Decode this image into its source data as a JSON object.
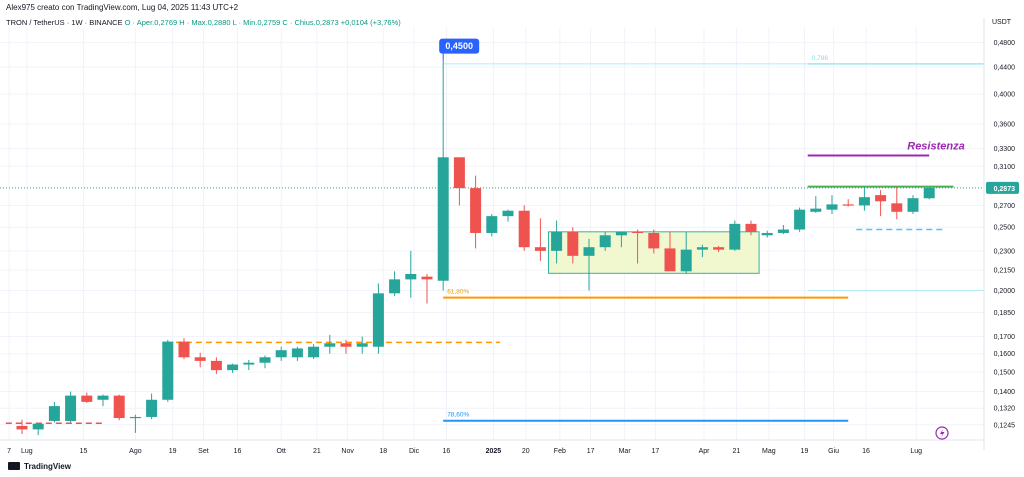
{
  "header": {
    "attribution": "Alex975 creato con TradingView.com, Lug 04, 2025 11:43 UTC+2",
    "symbol_line": "TRON / TetherUS · 1W · BINANCE",
    "ohlc": "O · Aper.0,2769  H · Max.0,2880  L · Min.0,2759  C · Chius.0,2873  +0,0104 (+3,76%)"
  },
  "footer": {
    "logo_text": "TradingView"
  },
  "colors": {
    "up": "#26a69a",
    "down": "#ef5350",
    "resistance": "#9c27b0",
    "green_line": "#4caf50",
    "orange": "#ff9800",
    "fib_blue": "#2196f3",
    "box_fill": "#f1f8d0",
    "box_border": "#2fb3a6",
    "price_tag": "#26a69a",
    "high_tag": "#2962ff"
  },
  "chart_data": {
    "type": "candlestick",
    "currency": "USDT",
    "scale": "log",
    "ylim": [
      0.118,
      0.505
    ],
    "y_ticks": [
      "0,4800",
      "0,4400",
      "0,4000",
      "0,3600",
      "0,3300",
      "0,3100",
      "0,2873",
      "0,2700",
      "0,2500",
      "0,2300",
      "0,2150",
      "0,2000",
      "0,1850",
      "0,1700",
      "0,1600",
      "0,1500",
      "0,1400",
      "0,1320",
      "0,1245"
    ],
    "y_tick_values": [
      0.48,
      0.44,
      0.4,
      0.36,
      0.33,
      0.31,
      0.2873,
      0.27,
      0.25,
      0.23,
      0.215,
      0.2,
      0.185,
      0.17,
      0.16,
      0.15,
      0.14,
      0.132,
      0.1245
    ],
    "x_labels": [
      "7",
      "Lug",
      "15",
      "Ago",
      "19",
      "Set",
      "16",
      "Ott",
      "21",
      "Nov",
      "18",
      "Dic",
      "16",
      "2025",
      "20",
      "Feb",
      "17",
      "Mar",
      "17",
      "Apr",
      "21",
      "Mag",
      "19",
      "Giu",
      "16",
      "Lug"
    ],
    "x_label_idx": [
      -0.8,
      0.3,
      3.8,
      7,
      9.3,
      11.2,
      13.3,
      16,
      18.2,
      20.1,
      22.3,
      24.2,
      26.2,
      29.1,
      31.1,
      33.2,
      35.1,
      37.2,
      39.1,
      42.1,
      44.1,
      46.1,
      48.3,
      50.1,
      52.1,
      55.2
    ],
    "candles": [
      {
        "o": 0.124,
        "h": 0.1268,
        "l": 0.1205,
        "c": 0.1225
      },
      {
        "o": 0.1225,
        "h": 0.1252,
        "l": 0.12,
        "c": 0.125
      },
      {
        "o": 0.1262,
        "h": 0.135,
        "l": 0.1255,
        "c": 0.133
      },
      {
        "o": 0.1262,
        "h": 0.14,
        "l": 0.1255,
        "c": 0.138
      },
      {
        "o": 0.138,
        "h": 0.1395,
        "l": 0.1345,
        "c": 0.135
      },
      {
        "o": 0.136,
        "h": 0.1385,
        "l": 0.133,
        "c": 0.138
      },
      {
        "o": 0.138,
        "h": 0.1385,
        "l": 0.1265,
        "c": 0.1275
      },
      {
        "o": 0.1275,
        "h": 0.129,
        "l": 0.121,
        "c": 0.128
      },
      {
        "o": 0.128,
        "h": 0.139,
        "l": 0.127,
        "c": 0.136
      },
      {
        "o": 0.136,
        "h": 0.168,
        "l": 0.135,
        "c": 0.167
      },
      {
        "o": 0.167,
        "h": 0.169,
        "l": 0.157,
        "c": 0.158
      },
      {
        "o": 0.158,
        "h": 0.1605,
        "l": 0.1525,
        "c": 0.156
      },
      {
        "o": 0.156,
        "h": 0.158,
        "l": 0.149,
        "c": 0.151
      },
      {
        "o": 0.151,
        "h": 0.1545,
        "l": 0.1495,
        "c": 0.154
      },
      {
        "o": 0.154,
        "h": 0.1565,
        "l": 0.151,
        "c": 0.155
      },
      {
        "o": 0.155,
        "h": 0.159,
        "l": 0.152,
        "c": 0.158
      },
      {
        "o": 0.158,
        "h": 0.164,
        "l": 0.156,
        "c": 0.162
      },
      {
        "o": 0.158,
        "h": 0.164,
        "l": 0.156,
        "c": 0.163
      },
      {
        "o": 0.158,
        "h": 0.1655,
        "l": 0.157,
        "c": 0.164
      },
      {
        "o": 0.164,
        "h": 0.171,
        "l": 0.16,
        "c": 0.166
      },
      {
        "o": 0.166,
        "h": 0.168,
        "l": 0.16,
        "c": 0.164
      },
      {
        "o": 0.164,
        "h": 0.17,
        "l": 0.16,
        "c": 0.166
      },
      {
        "o": 0.164,
        "h": 0.205,
        "l": 0.16,
        "c": 0.198
      },
      {
        "o": 0.198,
        "h": 0.214,
        "l": 0.196,
        "c": 0.208
      },
      {
        "o": 0.208,
        "h": 0.23,
        "l": 0.195,
        "c": 0.212
      },
      {
        "o": 0.21,
        "h": 0.212,
        "l": 0.191,
        "c": 0.208
      },
      {
        "o": 0.207,
        "h": 0.45,
        "l": 0.2,
        "c": 0.32
      },
      {
        "o": 0.32,
        "h": 0.32,
        "l": 0.27,
        "c": 0.287
      },
      {
        "o": 0.287,
        "h": 0.3,
        "l": 0.232,
        "c": 0.245
      },
      {
        "o": 0.245,
        "h": 0.262,
        "l": 0.242,
        "c": 0.26
      },
      {
        "o": 0.26,
        "h": 0.266,
        "l": 0.255,
        "c": 0.265
      },
      {
        "o": 0.265,
        "h": 0.27,
        "l": 0.23,
        "c": 0.233
      },
      {
        "o": 0.233,
        "h": 0.258,
        "l": 0.222,
        "c": 0.23
      },
      {
        "o": 0.23,
        "h": 0.256,
        "l": 0.22,
        "c": 0.246
      },
      {
        "o": 0.246,
        "h": 0.25,
        "l": 0.22,
        "c": 0.226
      },
      {
        "o": 0.226,
        "h": 0.24,
        "l": 0.2,
        "c": 0.233
      },
      {
        "o": 0.233,
        "h": 0.246,
        "l": 0.23,
        "c": 0.243
      },
      {
        "o": 0.243,
        "h": 0.246,
        "l": 0.233,
        "c": 0.246
      },
      {
        "o": 0.246,
        "h": 0.248,
        "l": 0.22,
        "c": 0.245
      },
      {
        "o": 0.245,
        "h": 0.248,
        "l": 0.228,
        "c": 0.232
      },
      {
        "o": 0.232,
        "h": 0.246,
        "l": 0.215,
        "c": 0.214
      },
      {
        "o": 0.214,
        "h": 0.246,
        "l": 0.212,
        "c": 0.231
      },
      {
        "o": 0.231,
        "h": 0.235,
        "l": 0.225,
        "c": 0.233
      },
      {
        "o": 0.233,
        "h": 0.234,
        "l": 0.229,
        "c": 0.231
      },
      {
        "o": 0.231,
        "h": 0.256,
        "l": 0.23,
        "c": 0.253
      },
      {
        "o": 0.253,
        "h": 0.256,
        "l": 0.243,
        "c": 0.246
      },
      {
        "o": 0.243,
        "h": 0.247,
        "l": 0.241,
        "c": 0.245
      },
      {
        "o": 0.245,
        "h": 0.252,
        "l": 0.244,
        "c": 0.248
      },
      {
        "o": 0.248,
        "h": 0.268,
        "l": 0.246,
        "c": 0.266
      },
      {
        "o": 0.264,
        "h": 0.279,
        "l": 0.263,
        "c": 0.267
      },
      {
        "o": 0.266,
        "h": 0.28,
        "l": 0.262,
        "c": 0.271
      },
      {
        "o": 0.271,
        "h": 0.276,
        "l": 0.269,
        "c": 0.27
      },
      {
        "o": 0.27,
        "h": 0.289,
        "l": 0.265,
        "c": 0.278
      },
      {
        "o": 0.28,
        "h": 0.285,
        "l": 0.26,
        "c": 0.274
      },
      {
        "o": 0.272,
        "h": 0.288,
        "l": 0.257,
        "c": 0.264
      },
      {
        "o": 0.264,
        "h": 0.28,
        "l": 0.262,
        "c": 0.277
      },
      {
        "o": 0.2769,
        "h": 0.288,
        "l": 0.2759,
        "c": 0.2873
      }
    ],
    "current_price": "0,2873",
    "current_value": 0.2873,
    "high_label": "0,4500",
    "high_value": 0.45,
    "levels": [
      {
        "name": "resistance-purple",
        "value": 0.322,
        "from": 48.5,
        "to": 56
      },
      {
        "name": "resistance-green",
        "value": 0.2885,
        "from": 48.5,
        "to": 57.5
      },
      {
        "name": "support-dashed-blue",
        "value": 0.248,
        "from": 51.5,
        "to": 57,
        "dashed": true
      },
      {
        "name": "orange-support",
        "value": 0.195,
        "from": 26,
        "to": 51,
        "label": "61,80%"
      },
      {
        "name": "orange-dashed-old",
        "value": 0.1665,
        "from": 9.5,
        "to": 29.5,
        "dashed": true
      },
      {
        "name": "fib-786",
        "value": 0.1263,
        "from": 26,
        "to": 51,
        "label": "78,60%"
      },
      {
        "name": "fib-top",
        "value": 0.445,
        "from": 48.5,
        "to": 60,
        "label": "0,786"
      },
      {
        "name": "red-dashed-low",
        "value": 0.1252,
        "from": -1,
        "to": 5,
        "dashed": true
      }
    ],
    "range_box": {
      "from": 32.5,
      "to": 45.5,
      "top": 0.246,
      "bottom": 0.2125
    },
    "annotation": "Resistenza"
  }
}
